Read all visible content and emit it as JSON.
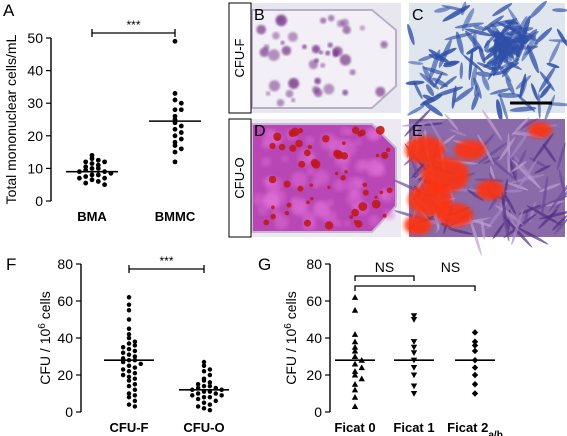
{
  "panels": {
    "A": "A",
    "B": "B",
    "C": "C",
    "D": "D",
    "E": "E",
    "F": "F",
    "G": "G"
  },
  "photos": {
    "B_label": "CFU-F",
    "D_label": "CFU-O"
  },
  "colors": {
    "ink": "#000000",
    "cfu_f_stain": "#7a3a8c",
    "cfu_o_stain": "#c01818",
    "cfu_o_bg": "#b040b0",
    "fibroblast_blue": "#3050a8",
    "alizarin_red": "#ff3010"
  },
  "chart_data": [
    {
      "id": "A",
      "type": "scatter",
      "ylabel": "Total mononuclear cells/mL",
      "categories": [
        "BMA",
        "BMMC"
      ],
      "ylim": [
        0,
        50
      ],
      "yticks": [
        0,
        10,
        20,
        30,
        40,
        50
      ],
      "significance": "***",
      "series": [
        {
          "category": "BMA",
          "mean": 9,
          "values": [
            14,
            13,
            12.5,
            12,
            12,
            11.5,
            11,
            10.5,
            10,
            10,
            9.5,
            9,
            9,
            8.5,
            8,
            8,
            7.5,
            7,
            7,
            6.5,
            6,
            5.5,
            5
          ]
        },
        {
          "category": "BMMC",
          "mean": 24.5,
          "values": [
            49,
            33,
            31,
            30,
            28,
            28,
            26,
            25,
            24,
            23,
            22,
            21,
            20,
            19,
            18,
            17,
            16,
            15,
            12
          ]
        }
      ]
    },
    {
      "id": "F",
      "type": "scatter",
      "ylabel": "CFU / 10",
      "ylabel_sup": "6",
      "ylabel_suffix": " cells",
      "categories": [
        "CFU-F",
        "CFU-O"
      ],
      "ylim": [
        0,
        80
      ],
      "yticks": [
        0,
        20,
        40,
        60,
        80
      ],
      "significance": "***",
      "series": [
        {
          "category": "CFU-F",
          "mean": 28,
          "values": [
            62,
            58,
            55,
            50,
            45,
            42,
            40,
            38,
            37,
            36,
            35,
            34,
            33,
            32,
            31,
            30,
            29,
            28,
            28,
            27,
            26,
            25,
            24,
            23,
            22,
            21,
            20,
            19,
            18,
            17,
            15,
            14,
            12,
            10,
            9,
            8,
            6,
            4,
            3
          ]
        },
        {
          "category": "CFU-O",
          "mean": 12,
          "values": [
            27,
            25,
            23,
            22,
            20,
            18,
            17,
            16,
            15,
            14,
            14,
            13,
            13,
            12,
            12,
            11,
            11,
            10,
            10,
            9,
            9,
            8,
            8,
            7,
            6,
            5,
            4,
            3,
            2,
            1
          ]
        }
      ]
    },
    {
      "id": "G",
      "type": "scatter",
      "ylabel": "CFU / 10",
      "ylabel_sup": "6",
      "ylabel_suffix": " cells",
      "categories": [
        "Ficat 0",
        "Ficat 1",
        "Ficat 2"
      ],
      "category_sub": [
        "",
        "",
        "a/b"
      ],
      "ylim": [
        0,
        80
      ],
      "yticks": [
        0,
        20,
        40,
        60,
        80
      ],
      "significance": [
        "NS",
        "NS"
      ],
      "series": [
        {
          "category": "Ficat 0",
          "marker": "triangle-up",
          "mean": 28,
          "values": [
            62,
            55,
            42,
            38,
            35,
            33,
            30,
            28,
            26,
            24,
            22,
            20,
            18,
            15,
            12,
            8,
            3
          ]
        },
        {
          "category": "Ficat 1",
          "marker": "triangle-down",
          "mean": 28,
          "values": [
            52,
            50,
            38,
            35,
            32,
            28,
            24,
            20,
            14,
            10
          ]
        },
        {
          "category": "Ficat 2",
          "marker": "diamond",
          "mean": 28,
          "values": [
            43,
            38,
            36,
            33,
            28,
            24,
            20,
            15,
            10
          ]
        }
      ]
    }
  ]
}
